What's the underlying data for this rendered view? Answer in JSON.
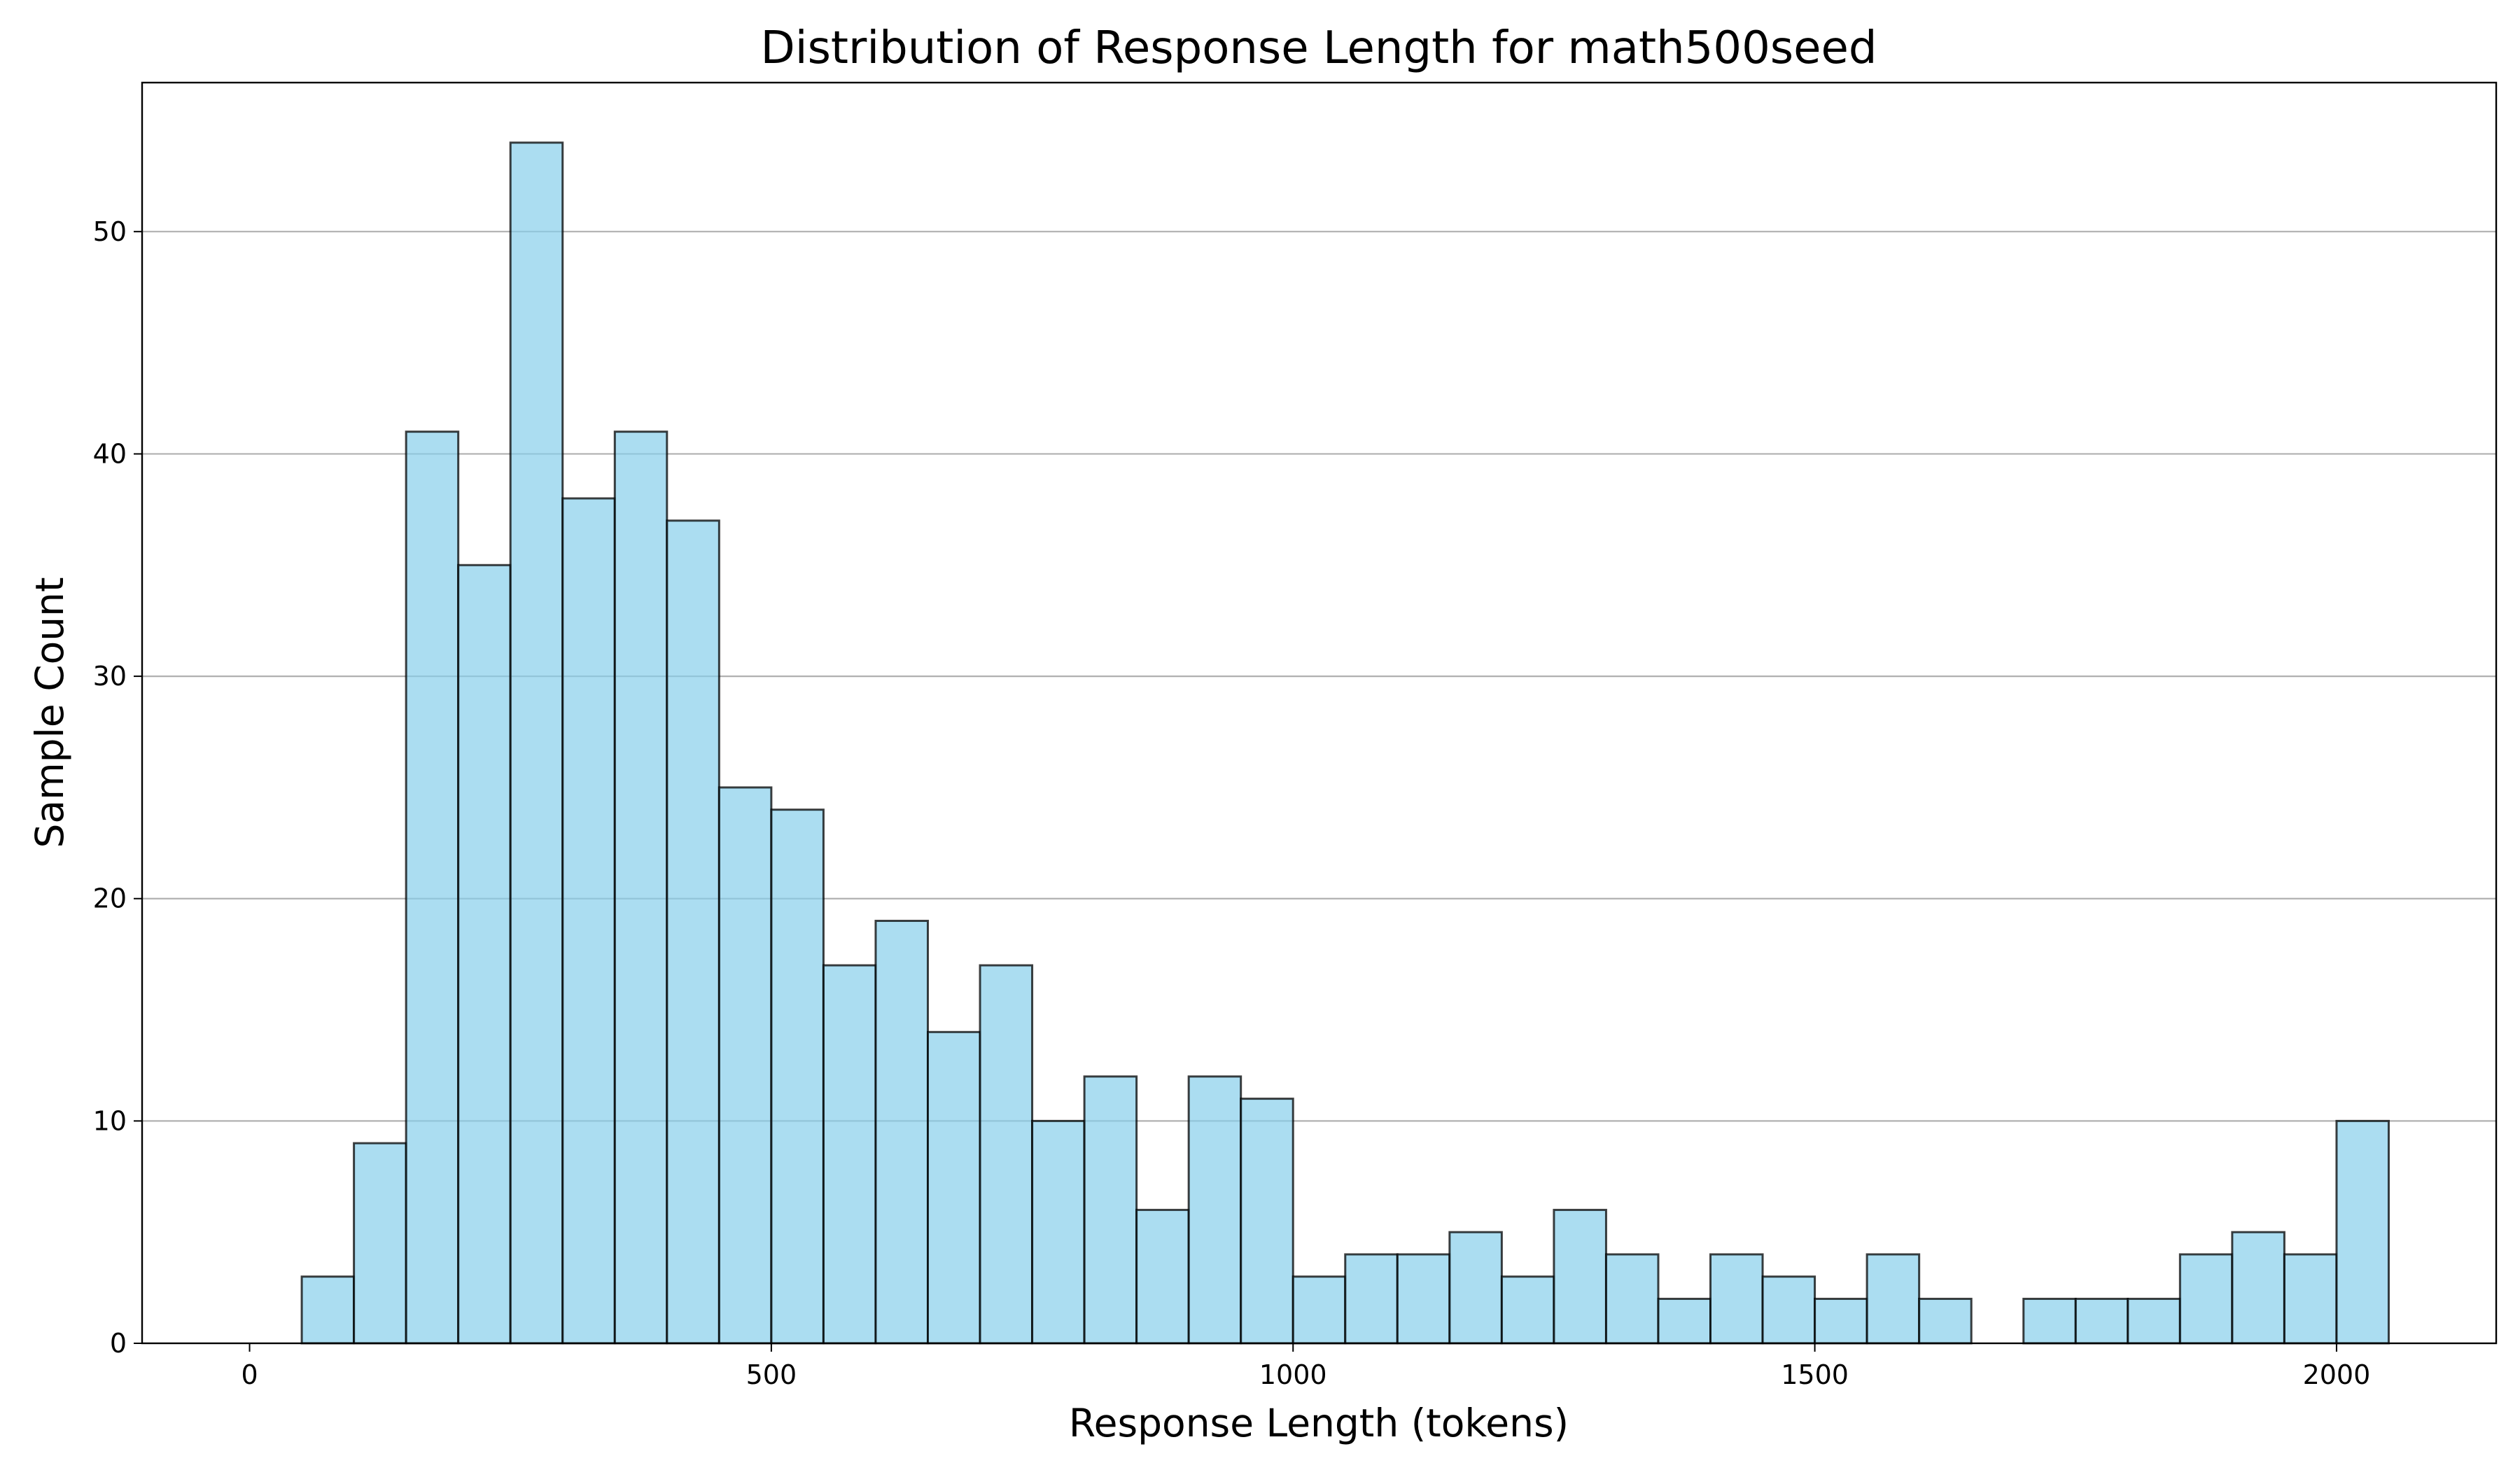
{
  "chart_data": {
    "type": "bar",
    "subtype": "histogram",
    "title": "Distribution of Response Length for math500seed",
    "xlabel": "Response Length (tokens)",
    "ylabel": "Sample Count",
    "bin_width": 50,
    "bin_start": 0,
    "values": [
      0,
      3,
      9,
      41,
      35,
      54,
      38,
      41,
      37,
      25,
      24,
      17,
      19,
      14,
      17,
      10,
      12,
      6,
      12,
      11,
      3,
      4,
      4,
      5,
      3,
      6,
      4,
      2,
      4,
      3,
      2,
      4,
      2,
      0,
      2,
      2,
      2,
      4,
      5,
      4,
      10
    ],
    "xlim": [
      -103,
      2153
    ],
    "ylim": [
      0,
      56.7
    ],
    "xticks": [
      0,
      500,
      1000,
      1500,
      2000
    ],
    "xtick_labels": [
      "0",
      "500",
      "1000",
      "1500",
      "2000"
    ],
    "yticks": [
      0,
      10,
      20,
      30,
      40,
      50
    ],
    "ytick_labels": [
      "0",
      "10",
      "20",
      "30",
      "40",
      "50"
    ],
    "grid": "y",
    "colors": {
      "bar_fill": "#87ceeb",
      "bar_edge": "#000000",
      "grid": "#b0b0b0"
    },
    "bar_opacity": 0.7
  }
}
